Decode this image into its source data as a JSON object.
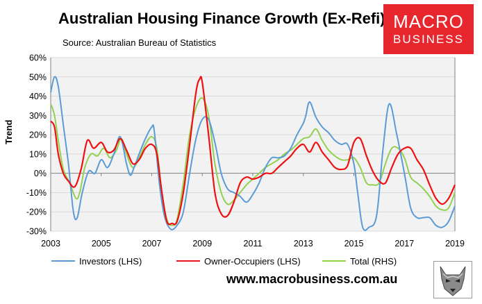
{
  "header": {
    "title": "Australian Housing Finance Growth (Ex-Refi)",
    "subtitle": "Source: Australian Bureau of Statistics"
  },
  "logo": {
    "line1": "MACRO",
    "line2": "BUSINESS",
    "color": "#e8262d"
  },
  "footer": {
    "url": "www.macrobusiness.com.au",
    "badge_icon": "wolf-icon"
  },
  "colors": {
    "investors": "#5b9bd5",
    "owner_occupiers": "#ee1111",
    "total": "#92d050",
    "plot_bg": "#f2f2f2"
  },
  "chart_data": {
    "type": "line",
    "title": "Australian Housing Finance Growth (Ex-Refi)",
    "xlabel": "",
    "ylabel": "Trend",
    "x_ticks": [
      "2003",
      "2005",
      "2007",
      "2009",
      "2011",
      "2013",
      "2015",
      "2017",
      "2019"
    ],
    "y_ticks": [
      "60%",
      "50%",
      "40%",
      "30%",
      "20%",
      "10%",
      "0%",
      "-10%",
      "-20%",
      "-30%"
    ],
    "xlim": [
      2003,
      2019
    ],
    "ylim": [
      -30,
      60
    ],
    "grid": "horizontal",
    "legend_position": "bottom",
    "series": [
      {
        "name": "Investors (LHS)",
        "color": "#5b9bd5",
        "x": [
          2003.0,
          2003.15,
          2003.3,
          2003.5,
          2003.7,
          2003.9,
          2004.05,
          2004.25,
          2004.5,
          2004.75,
          2005.0,
          2005.25,
          2005.5,
          2005.75,
          2006.0,
          2006.15,
          2006.3,
          2006.5,
          2006.75,
          2007.0,
          2007.1,
          2007.3,
          2007.5,
          2007.75,
          2008.0,
          2008.25,
          2008.5,
          2008.75,
          2009.0,
          2009.25,
          2009.5,
          2009.75,
          2010.0,
          2010.25,
          2010.5,
          2010.75,
          2011.0,
          2011.25,
          2011.5,
          2011.75,
          2012.0,
          2012.25,
          2012.5,
          2012.75,
          2013.0,
          2013.1,
          2013.25,
          2013.5,
          2013.75,
          2014.0,
          2014.25,
          2014.5,
          2014.75,
          2015.0,
          2015.15,
          2015.35,
          2015.6,
          2015.9,
          2016.15,
          2016.4,
          2016.7,
          2017.0,
          2017.25,
          2017.5,
          2017.75,
          2018.0,
          2018.25,
          2018.5,
          2018.75,
          2019.0
        ],
        "values": [
          42,
          50,
          45,
          25,
          5,
          -20,
          -23,
          -10,
          1,
          0,
          7,
          3,
          10,
          19,
          5,
          -1,
          3,
          10,
          18,
          24,
          22,
          -5,
          -22,
          -29,
          -27,
          -20,
          0,
          18,
          28,
          28,
          16,
          0,
          -8,
          -10,
          -12,
          -15,
          -11,
          -5,
          3,
          8,
          8,
          9,
          13,
          20,
          26,
          30,
          37,
          29,
          24,
          21,
          17,
          15,
          15,
          5,
          -10,
          -28,
          -28,
          -22,
          12,
          36,
          20,
          0,
          -18,
          -23,
          -23,
          -23,
          -27,
          -28,
          -25,
          -17
        ]
      },
      {
        "name": "Owner-Occupiers (LHS)",
        "color": "#ee1111",
        "x": [
          2003.0,
          2003.15,
          2003.3,
          2003.5,
          2003.7,
          2003.95,
          2004.2,
          2004.45,
          2004.7,
          2005.0,
          2005.25,
          2005.5,
          2005.75,
          2006.0,
          2006.25,
          2006.5,
          2006.75,
          2007.0,
          2007.2,
          2007.4,
          2007.6,
          2007.8,
          2008.0,
          2008.25,
          2008.5,
          2008.75,
          2008.9,
          2009.0,
          2009.25,
          2009.5,
          2009.75,
          2010.0,
          2010.25,
          2010.5,
          2010.75,
          2011.0,
          2011.25,
          2011.5,
          2011.75,
          2012.0,
          2012.25,
          2012.5,
          2012.75,
          2013.0,
          2013.25,
          2013.5,
          2013.75,
          2014.0,
          2014.25,
          2014.5,
          2014.75,
          2015.0,
          2015.25,
          2015.5,
          2015.75,
          2016.0,
          2016.25,
          2016.5,
          2016.75,
          2017.0,
          2017.25,
          2017.5,
          2017.75,
          2018.0,
          2018.25,
          2018.5,
          2018.75,
          2019.0
        ],
        "values": [
          27,
          24,
          10,
          0,
          -4,
          -7,
          2,
          17,
          13,
          16,
          11,
          12,
          18,
          12,
          5,
          7,
          13,
          15,
          10,
          -10,
          -25,
          -26,
          -25,
          -10,
          15,
          42,
          49,
          47,
          20,
          -10,
          -21,
          -22,
          -15,
          -5,
          -2,
          -3,
          -2,
          0,
          0,
          3,
          6,
          9,
          13,
          15,
          11,
          16,
          11,
          7,
          3,
          2,
          4,
          16,
          18,
          9,
          1,
          -4,
          -5,
          3,
          10,
          13,
          13,
          7,
          2,
          -6,
          -13,
          -16,
          -13,
          -6
        ]
      },
      {
        "name": "Total (RHS)",
        "color": "#92d050",
        "x": [
          2003.0,
          2003.15,
          2003.3,
          2003.5,
          2003.75,
          2004.0,
          2004.15,
          2004.35,
          2004.6,
          2004.85,
          2005.1,
          2005.35,
          2005.6,
          2005.8,
          2006.0,
          2006.25,
          2006.5,
          2006.75,
          2007.0,
          2007.2,
          2007.4,
          2007.6,
          2007.8,
          2008.0,
          2008.25,
          2008.5,
          2008.75,
          2009.0,
          2009.25,
          2009.5,
          2009.75,
          2010.0,
          2010.25,
          2010.5,
          2010.75,
          2011.0,
          2011.25,
          2011.5,
          2011.75,
          2012.0,
          2012.25,
          2012.5,
          2012.75,
          2013.0,
          2013.25,
          2013.5,
          2013.75,
          2014.0,
          2014.25,
          2014.5,
          2014.75,
          2015.0,
          2015.25,
          2015.5,
          2015.75,
          2016.0,
          2016.25,
          2016.5,
          2016.75,
          2017.0,
          2017.25,
          2017.5,
          2017.75,
          2018.0,
          2018.25,
          2018.5,
          2018.75,
          2019.0
        ],
        "values": [
          36,
          30,
          17,
          2,
          -5,
          -13,
          -10,
          3,
          10,
          9,
          13,
          8,
          12,
          18,
          10,
          3,
          8,
          15,
          19,
          13,
          -10,
          -24,
          -27,
          -24,
          -5,
          20,
          34,
          39,
          30,
          5,
          -10,
          -16,
          -14,
          -10,
          -6,
          -3,
          0,
          3,
          5,
          7,
          10,
          12,
          15,
          18,
          19,
          23,
          17,
          12,
          9,
          7,
          7,
          8,
          3,
          -5,
          -6,
          -5,
          5,
          13,
          13,
          8,
          -2,
          -5,
          -8,
          -12,
          -17,
          -19,
          -18,
          -10
        ]
      }
    ]
  }
}
